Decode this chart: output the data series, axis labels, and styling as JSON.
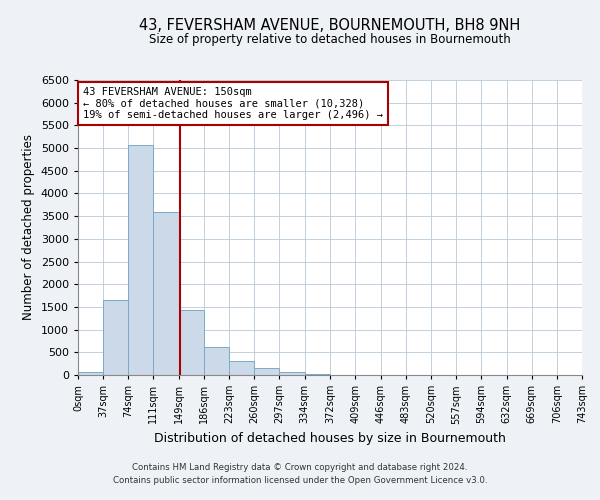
{
  "title": "43, FEVERSHAM AVENUE, BOURNEMOUTH, BH8 9NH",
  "subtitle": "Size of property relative to detached houses in Bournemouth",
  "xlabel": "Distribution of detached houses by size in Bournemouth",
  "ylabel": "Number of detached properties",
  "bar_edges": [
    0,
    37,
    74,
    111,
    149,
    186,
    223,
    260,
    297,
    334,
    372,
    409,
    446,
    483,
    520,
    557,
    594,
    632,
    669,
    706,
    743
  ],
  "bar_heights": [
    75,
    1650,
    5075,
    3600,
    1430,
    610,
    300,
    150,
    75,
    25,
    10,
    5,
    0,
    0,
    0,
    0,
    0,
    0,
    0,
    0
  ],
  "bar_color": "#ccd9e8",
  "bar_edgecolor": "#7aaac8",
  "property_line_x": 150,
  "property_line_color": "#aa0000",
  "annotation_text": "43 FEVERSHAM AVENUE: 150sqm\n← 80% of detached houses are smaller (10,328)\n19% of semi-detached houses are larger (2,496) →",
  "annotation_box_color": "white",
  "annotation_box_edgecolor": "#aa0000",
  "ylim": [
    0,
    6500
  ],
  "xlim": [
    0,
    743
  ],
  "tick_positions": [
    0,
    37,
    74,
    111,
    149,
    186,
    223,
    260,
    297,
    334,
    372,
    409,
    446,
    483,
    520,
    557,
    594,
    632,
    669,
    706,
    743
  ],
  "tick_labels": [
    "0sqm",
    "37sqm",
    "74sqm",
    "111sqm",
    "149sqm",
    "186sqm",
    "223sqm",
    "260sqm",
    "297sqm",
    "334sqm",
    "372sqm",
    "409sqm",
    "446sqm",
    "483sqm",
    "520sqm",
    "557sqm",
    "594sqm",
    "632sqm",
    "669sqm",
    "706sqm",
    "743sqm"
  ],
  "footer_line1": "Contains HM Land Registry data © Crown copyright and database right 2024.",
  "footer_line2": "Contains public sector information licensed under the Open Government Licence v3.0.",
  "bg_color": "#eef2f7",
  "plot_bg_color": "#ffffff",
  "grid_color": "#b8c8d8"
}
